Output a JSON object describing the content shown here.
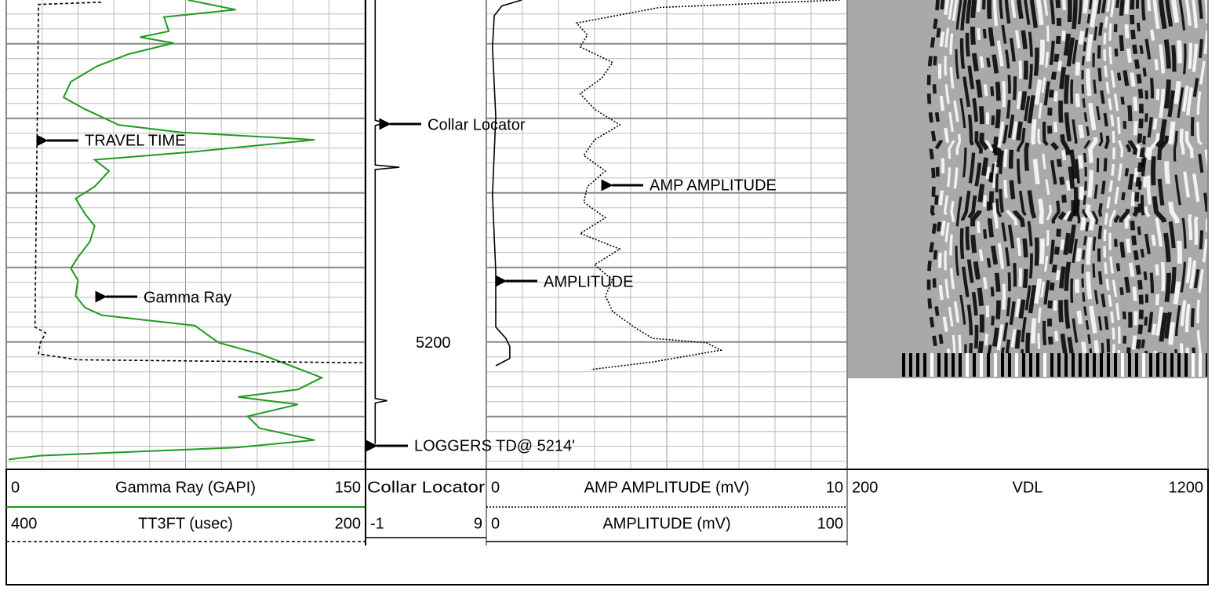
{
  "chart_data": {
    "type": "well-log",
    "ylim": [
      5154,
      5216.5
    ],
    "yticks": [
      5200
    ],
    "series": [
      {
        "name": "Gamma Ray (GAPI)",
        "color": "#1f9a1f",
        "style": "solid",
        "xlim": [
          0,
          150
        ],
        "depth": [
          5154.0,
          5155.3,
          5156.3,
          5158.2,
          5159.0,
          5159.8,
          5161.3,
          5162.9,
          5165.0,
          5167.1,
          5168.7,
          5170.8,
          5171.8,
          5172.8,
          5174.4,
          5175.5,
          5177.0,
          5179.1,
          5180.7,
          5182.8,
          5184.4,
          5186.5,
          5188.6,
          5190.1,
          5191.7,
          5193.8,
          5195.4,
          5196.4,
          5197.8,
          5199.0,
          5200.1,
          5201.6,
          5202.7,
          5204.8,
          5206.4,
          5207.4,
          5208.4,
          5210.0,
          5211.6,
          5213.2,
          5214.2,
          5215.3,
          5215.8
        ],
        "values": [
          76,
          96,
          66,
          68,
          56,
          70,
          51,
          38,
          27,
          24,
          33,
          47,
          73,
          129,
          79,
          37,
          43,
          37,
          29,
          33,
          37,
          35,
          30,
          27,
          30,
          29,
          33,
          40,
          79,
          84,
          89,
          106,
          115,
          132,
          122,
          97,
          122,
          101,
          106,
          129,
          96,
          14,
          1
        ]
      },
      {
        "name": "TT3FT (usec)",
        "color": "#000000",
        "style": "dashed",
        "xlim": [
          400,
          200
        ],
        "depth": [
          5154.3,
          5154.6,
          5198.0,
          5198.8,
          5200.1,
          5201.6,
          5202.4,
          5202.8
        ],
        "values": [
          347,
          382,
          384,
          378,
          381,
          382,
          360,
          200
        ]
      },
      {
        "name": "Collar Locator",
        "color": "#000000",
        "style": "solid",
        "xlim": [
          -1,
          9
        ],
        "depth": [
          5154.0,
          5170.2,
          5170.5,
          5170.9,
          5176.2,
          5176.5,
          5176.8,
          5207.6,
          5207.9,
          5208.2,
          5213.7
        ],
        "values": [
          -0.2,
          -0.2,
          0.6,
          -0.2,
          -0.2,
          1.8,
          -0.2,
          -0.2,
          0.8,
          -0.2,
          -0.2
        ]
      },
      {
        "name": "AMP AMPLITUDE (mV)",
        "color": "#000000",
        "style": "dotted",
        "xlim": [
          0,
          10
        ],
        "depth": [
          5154.0,
          5155.0,
          5157.1,
          5158.7,
          5160.3,
          5162.4,
          5164.5,
          5166.6,
          5168.7,
          5170.8,
          5172.8,
          5174.9,
          5177.0,
          5179.1,
          5181.2,
          5183.3,
          5185.4,
          5187.5,
          5189.6,
          5191.7,
          5193.8,
          5195.9,
          5198.0,
          5199.5,
          5200.1,
          5201.1,
          5202.7,
          5203.7
        ],
        "values": [
          9.8,
          4.8,
          2.5,
          2.8,
          2.6,
          3.5,
          3.2,
          2.6,
          3.0,
          3.7,
          3.0,
          2.7,
          3.3,
          2.8,
          2.7,
          3.3,
          2.6,
          3.7,
          3.0,
          3.5,
          3.3,
          3.5,
          4.1,
          4.6,
          6.1,
          6.5,
          4.6,
          2.9
        ]
      },
      {
        "name": "AMPLITUDE (mV)",
        "color": "#000000",
        "style": "solid",
        "xlim": [
          0,
          100
        ],
        "depth": [
          5154.0,
          5154.8,
          5156.1,
          5160.3,
          5169.7,
          5180.2,
          5190.6,
          5198.0,
          5199.5,
          5200.6,
          5202.2,
          5203.2
        ],
        "values": [
          9.8,
          4.3,
          2.2,
          1.7,
          2.6,
          1.7,
          2.6,
          2.6,
          5.4,
          6.5,
          6.5,
          2.6
        ]
      }
    ],
    "vdl": {
      "name": "VDL",
      "xlim": [
        200,
        1200
      ]
    },
    "annotations": [
      "TRAVEL TIME",
      "Gamma Ray",
      "Collar Locator",
      "AMP AMPLITUDE",
      "AMPLITUDE",
      "LOGGERS TD@ 5214'"
    ]
  }
}
